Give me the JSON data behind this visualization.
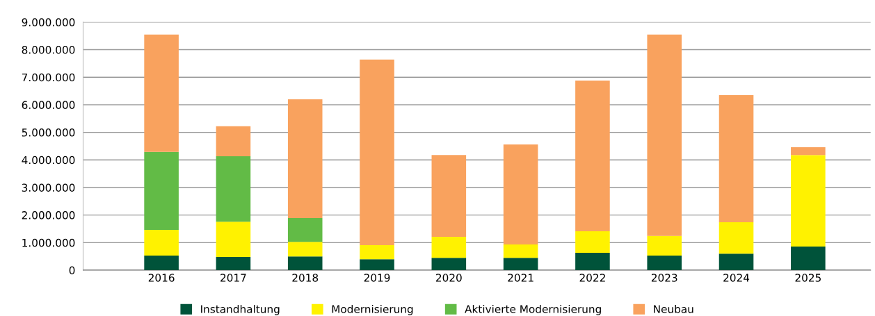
{
  "chart_data": {
    "type": "bar",
    "stacked": true,
    "categories": [
      "2016",
      "2017",
      "2018",
      "2019",
      "2020",
      "2021",
      "2022",
      "2023",
      "2024",
      "2025"
    ],
    "series": [
      {
        "name": "Instandhaltung",
        "color": "#00533a",
        "values": [
          530000,
          480000,
          500000,
          400000,
          450000,
          450000,
          630000,
          530000,
          600000,
          860000
        ]
      },
      {
        "name": "Modernisierung",
        "color": "#fff200",
        "values": [
          930000,
          1280000,
          530000,
          510000,
          760000,
          480000,
          780000,
          710000,
          1140000,
          3320000
        ]
      },
      {
        "name": "Aktivierte Modernisierung",
        "color": "#62bb46",
        "values": [
          2830000,
          2370000,
          860000,
          0,
          0,
          0,
          0,
          0,
          0,
          0
        ]
      },
      {
        "name": "Neubau",
        "color": "#f9a25e",
        "values": [
          4260000,
          1090000,
          4310000,
          6730000,
          2970000,
          3630000,
          5470000,
          7310000,
          4610000,
          280000
        ]
      }
    ],
    "ylim": [
      0,
      9000000
    ],
    "yticks": [
      {
        "value": 0,
        "label": "0"
      },
      {
        "value": 1000000,
        "label": "1.000.000"
      },
      {
        "value": 2000000,
        "label": "2.000.000"
      },
      {
        "value": 3000000,
        "label": "3.000.000"
      },
      {
        "value": 4000000,
        "label": "4.000.000"
      },
      {
        "value": 5000000,
        "label": "5.000.000"
      },
      {
        "value": 6000000,
        "label": "6.000.000"
      },
      {
        "value": 7000000,
        "label": "7.000.000"
      },
      {
        "value": 8000000,
        "label": "8.000.000"
      },
      {
        "value": 9000000,
        "label": "9.000.000"
      }
    ],
    "grid": "y",
    "legend": "bottom"
  }
}
